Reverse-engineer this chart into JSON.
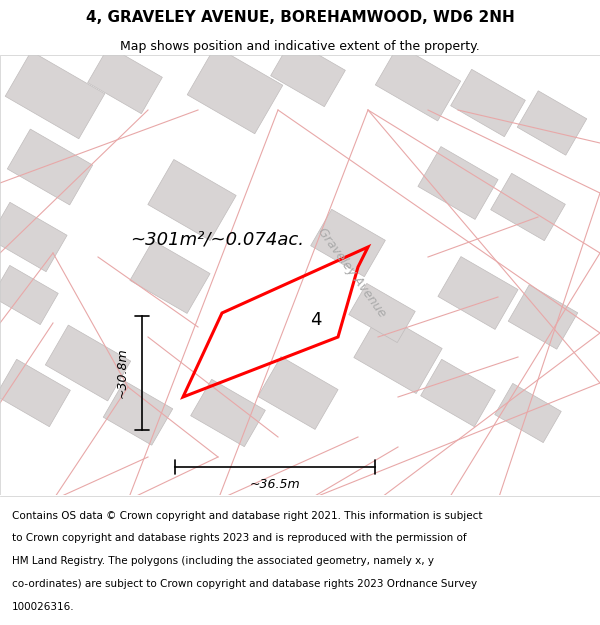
{
  "title": "4, GRAVELEY AVENUE, BOREHAMWOOD, WD6 2NH",
  "subtitle": "Map shows position and indicative extent of the property.",
  "footer_lines": [
    "Contains OS data © Crown copyright and database right 2021. This information is subject",
    "to Crown copyright and database rights 2023 and is reproduced with the permission of",
    "HM Land Registry. The polygons (including the associated geometry, namely x, y",
    "co-ordinates) are subject to Crown copyright and database rights 2023 Ordnance Survey",
    "100026316."
  ],
  "area_label": "~301m²/~0.074ac.",
  "width_label": "~36.5m",
  "height_label": "~30.8m",
  "property_number": "4",
  "map_bg": "#f2f0f0",
  "building_color": "#d8d4d4",
  "building_edge": "#c0bcbc",
  "highlight_color": "#ff0000",
  "street_label": "Graveley Avenue",
  "title_fontsize": 11,
  "subtitle_fontsize": 9,
  "footer_fontsize": 7.5,
  "highlight_lw": 2.2,
  "cadastral_color": "#e8a8a8",
  "cadastral_lw": 0.8
}
